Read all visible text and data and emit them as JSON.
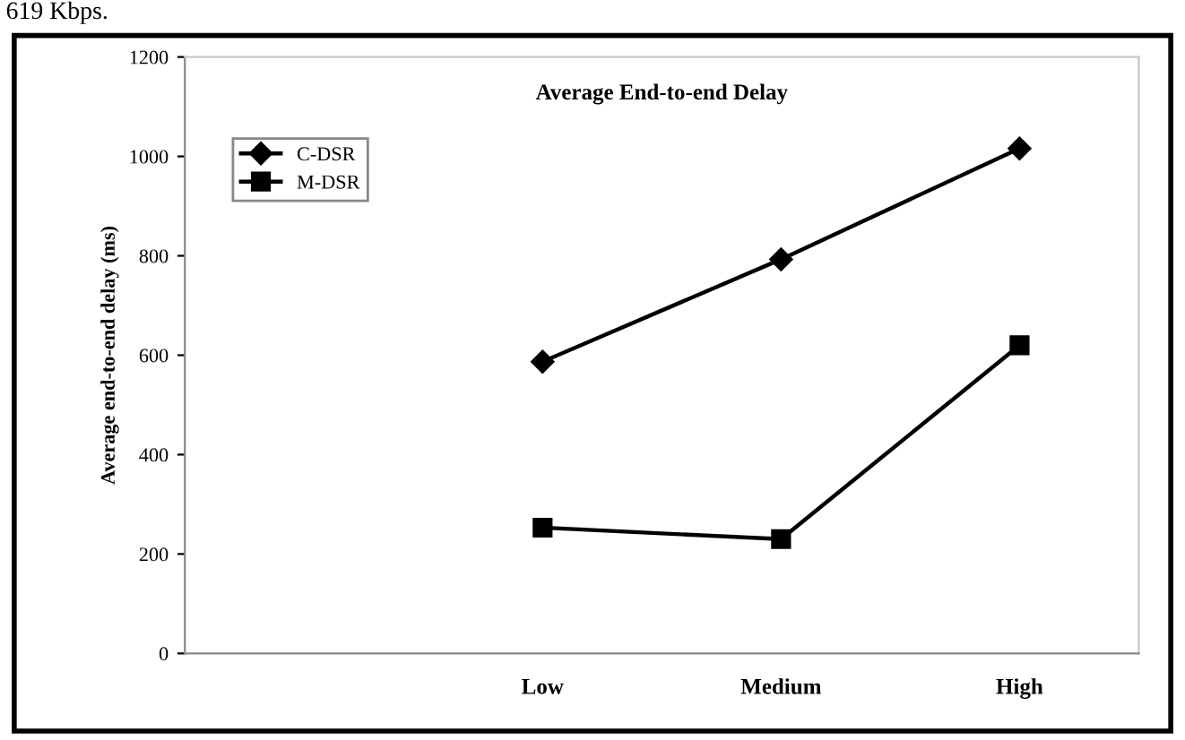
{
  "chart_data": {
    "type": "line",
    "title": "Average End-to-end Delay",
    "ylabel": "Average end-to-end delay (ms)",
    "annotations": [
      "619 Kbps."
    ],
    "categories": [
      null,
      "Low",
      "Medium",
      "High"
    ],
    "series": [
      {
        "name": "C-DSR",
        "color": "#000000",
        "values": [
          null,
          587,
          793,
          1016
        ],
        "marker": "diamond"
      },
      {
        "name": "M-DSR",
        "color": "#000000",
        "values": [
          null,
          253,
          230,
          620
        ],
        "marker": "square"
      }
    ],
    "ylim": [
      0,
      1200
    ],
    "yticks": [
      0,
      200,
      400,
      600,
      800,
      1000,
      1200
    ],
    "grid": false,
    "legend": "top left",
    "line_style": "solid"
  }
}
